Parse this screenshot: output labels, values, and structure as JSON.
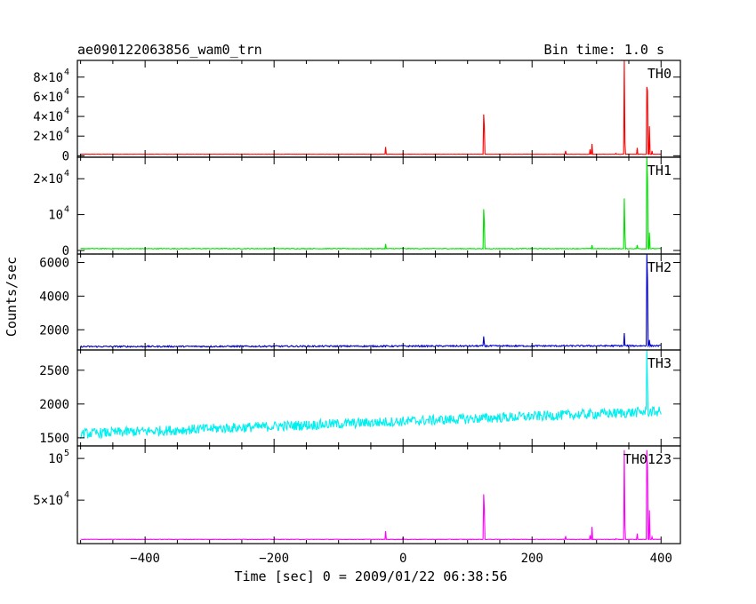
{
  "chart_data": {
    "type": "line",
    "title": "ae090122063856_wam0_trn",
    "subtitle": "Bin time: 1.0 s",
    "xlabel": "Time [sec] 0 = 2009/01/22 06:38:56",
    "ylabel": "Counts/sec",
    "xlim": [
      -505,
      430
    ],
    "x_ticks": [
      -400,
      -200,
      0,
      200,
      400
    ],
    "grid": false,
    "series": [
      {
        "name": "TH0",
        "color": "#ff0000",
        "ylim": [
          -1500,
          97000
        ],
        "y_ticks": [
          {
            "value": 0,
            "label": "0",
            "exp": ""
          },
          {
            "value": 20000,
            "label": "2×10",
            "exp": "4"
          },
          {
            "value": 40000,
            "label": "4×10",
            "exp": "4"
          },
          {
            "value": 60000,
            "label": "6×10",
            "exp": "4"
          },
          {
            "value": 80000,
            "label": "8×10",
            "exp": "4"
          }
        ],
        "baseline": 1500,
        "trend": 0,
        "noise": 150,
        "peaks": [
          [
            -27,
            9000
          ],
          [
            0,
            2500
          ],
          [
            125,
            42000
          ],
          [
            126,
            30000
          ],
          [
            172,
            1500
          ],
          [
            252,
            5000
          ],
          [
            290,
            6500
          ],
          [
            293,
            12000
          ],
          [
            330,
            2500
          ],
          [
            343,
            97000
          ],
          [
            344,
            14000
          ],
          [
            363,
            8000
          ],
          [
            378,
            70000
          ],
          [
            379,
            66000
          ],
          [
            382,
            30000
          ],
          [
            386,
            5000
          ]
        ]
      },
      {
        "name": "TH1",
        "color": "#00e000",
        "ylim": [
          -1000,
          26000
        ],
        "y_ticks": [
          {
            "value": 0,
            "label": "0",
            "exp": ""
          },
          {
            "value": 10000,
            "label": "10",
            "exp": "4"
          },
          {
            "value": 20000,
            "label": "2×10",
            "exp": "4"
          }
        ],
        "baseline": 500,
        "trend": 0,
        "noise": 100,
        "peaks": [
          [
            -27,
            1800
          ],
          [
            125,
            11500
          ],
          [
            126,
            8000
          ],
          [
            293,
            1500
          ],
          [
            343,
            14500
          ],
          [
            344,
            5000
          ],
          [
            363,
            1500
          ],
          [
            378,
            26000
          ],
          [
            379,
            20000
          ],
          [
            382,
            5000
          ]
        ]
      },
      {
        "name": "TH2",
        "color": "#0000d0",
        "ylim": [
          800,
          6500
        ],
        "y_ticks": [
          {
            "value": 2000,
            "label": "2000",
            "exp": ""
          },
          {
            "value": 4000,
            "label": "4000",
            "exp": ""
          },
          {
            "value": 6000,
            "label": "6000",
            "exp": ""
          }
        ],
        "baseline": 1000,
        "trend": 50,
        "noise": 45,
        "peaks": [
          [
            125,
            1600
          ],
          [
            126,
            1200
          ],
          [
            343,
            1800
          ],
          [
            378,
            6500
          ],
          [
            379,
            5000
          ],
          [
            382,
            1400
          ]
        ]
      },
      {
        "name": "TH3",
        "color": "#00f0f0",
        "ylim": [
          1380,
          2800
        ],
        "y_ticks": [
          {
            "value": 1500,
            "label": "1500",
            "exp": ""
          },
          {
            "value": 2000,
            "label": "2000",
            "exp": ""
          },
          {
            "value": 2500,
            "label": "2500",
            "exp": ""
          }
        ],
        "baseline": 1560,
        "trend": 330,
        "noise": 75,
        "peaks": [
          [
            378,
            2800
          ],
          [
            379,
            2300
          ]
        ]
      },
      {
        "name": "TH0123",
        "color": "#ff00ff",
        "ylim": [
          -2000,
          115000
        ],
        "y_ticks": [
          {
            "value": 50000,
            "label": "5×10",
            "exp": "4"
          },
          {
            "value": 100000,
            "label": "10",
            "exp": "5"
          }
        ],
        "baseline": 3000,
        "trend": 0,
        "noise": 300,
        "peaks": [
          [
            -27,
            13000
          ],
          [
            0,
            5000
          ],
          [
            125,
            57000
          ],
          [
            126,
            40000
          ],
          [
            172,
            3500
          ],
          [
            252,
            7000
          ],
          [
            290,
            8000
          ],
          [
            293,
            18000
          ],
          [
            330,
            4000
          ],
          [
            343,
            110000
          ],
          [
            344,
            20000
          ],
          [
            363,
            10000
          ],
          [
            378,
            110000
          ],
          [
            379,
            90000
          ],
          [
            382,
            38000
          ],
          [
            386,
            6000
          ]
        ]
      }
    ]
  }
}
